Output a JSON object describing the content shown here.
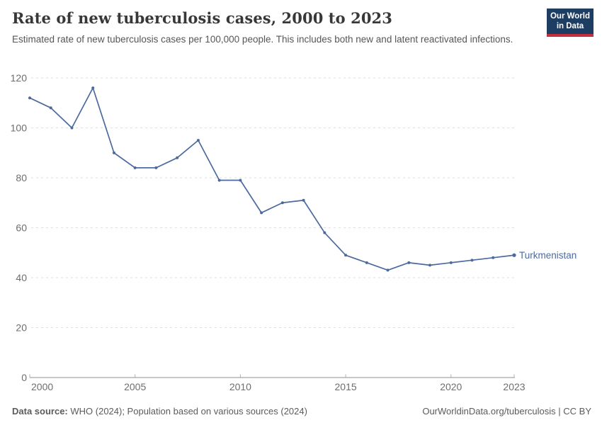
{
  "header": {
    "title": "Rate of new tuberculosis cases, 2000 to 2023",
    "subtitle": "Estimated rate of new tuberculosis cases per 100,000 people. This includes both new and latent reactivated infections.",
    "logo": {
      "line1": "Our World",
      "line2": "in Data",
      "bg_color": "#1d3d63",
      "accent_color": "#c5303e"
    }
  },
  "chart_data": {
    "type": "line",
    "title": "Rate of new tuberculosis cases, 2000 to 2023",
    "xlabel": "",
    "ylabel": "",
    "x": [
      2000,
      2001,
      2002,
      2003,
      2004,
      2005,
      2006,
      2007,
      2008,
      2009,
      2010,
      2011,
      2012,
      2013,
      2014,
      2015,
      2016,
      2017,
      2018,
      2019,
      2020,
      2021,
      2022,
      2023
    ],
    "series": [
      {
        "name": "Turkmenistan",
        "color": "#4c6a9e",
        "values": [
          112,
          108,
          100,
          116,
          90,
          84,
          84,
          88,
          95,
          79,
          79,
          66,
          70,
          71,
          58,
          49,
          46,
          43,
          46,
          45,
          46,
          47,
          48,
          49
        ]
      }
    ],
    "xlim": [
      2000,
      2023
    ],
    "ylim": [
      0,
      120
    ],
    "yticks": [
      0,
      20,
      40,
      60,
      80,
      100,
      120
    ],
    "xticks": [
      2000,
      2005,
      2010,
      2015,
      2020,
      2023
    ],
    "grid": "horizontal-dashed",
    "legend": "series-end-label",
    "grid_color": "#dedede",
    "axis_color": "#8f8f8f",
    "tick_color": "#afafaf",
    "tick_label_color": "#6e6e6e"
  },
  "footer": {
    "source_label": "Data source:",
    "source_text": "WHO (2024); Population based on various sources (2024)",
    "link_text": "OurWorldinData.org/tuberculosis | CC BY"
  }
}
